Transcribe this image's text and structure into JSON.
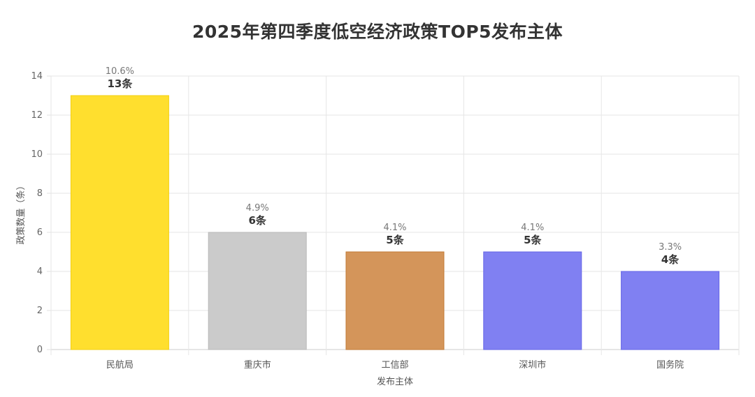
{
  "chart_data": {
    "type": "bar",
    "title": "2025年第四季度低空经济政策TOP5发布主体",
    "xlabel": "发布主体",
    "ylabel": "政策数量（条）",
    "ylim": [
      0,
      14
    ],
    "yticks": [
      0,
      2,
      4,
      6,
      8,
      10,
      12,
      14
    ],
    "grid": true,
    "categories": [
      "民航局",
      "重庆市",
      "工信部",
      "深圳市",
      "国务院"
    ],
    "values": [
      13,
      6,
      5,
      5,
      4
    ],
    "percent_labels": [
      "10.6%",
      "4.9%",
      "4.1%",
      "4.1%",
      "3.3%"
    ],
    "count_labels": [
      "13条",
      "6条",
      "5条",
      "5条",
      "4条"
    ],
    "colors": [
      {
        "fill": "#FFDF2E",
        "stroke": "#F2CF10"
      },
      {
        "fill": "#CBCBCB",
        "stroke": "#B9B9B9"
      },
      {
        "fill": "#D4955A",
        "stroke": "#C27A35"
      },
      {
        "fill": "#8080F2",
        "stroke": "#6464E6"
      },
      {
        "fill": "#8080F2",
        "stroke": "#6464E6"
      }
    ]
  }
}
